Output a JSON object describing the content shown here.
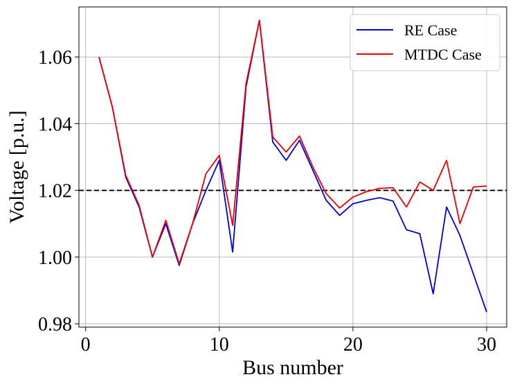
{
  "chart_data": {
    "type": "line",
    "title": "",
    "xlabel": "Bus number",
    "ylabel": "Voltage [p.u.]",
    "xlim": [
      -0.5,
      31.5
    ],
    "ylim": [
      0.979,
      1.075
    ],
    "xticks": [
      0,
      10,
      20,
      30
    ],
    "xtick_labels": [
      "0",
      "10",
      "20",
      "30"
    ],
    "yticks": [
      0.98,
      1.0,
      1.02,
      1.04,
      1.06
    ],
    "ytick_labels": [
      "0.98",
      "1.00",
      "1.02",
      "1.04",
      "1.06"
    ],
    "grid": true,
    "legend_position": "top-right",
    "reference_line": {
      "y": 1.02,
      "style": "dashed",
      "color": "#000000"
    },
    "x": [
      1,
      2,
      3,
      4,
      5,
      6,
      7,
      8,
      9,
      10,
      11,
      12,
      13,
      14,
      15,
      16,
      17,
      18,
      19,
      20,
      21,
      22,
      23,
      24,
      25,
      26,
      27,
      28,
      29,
      30
    ],
    "series": [
      {
        "name": "RE Case",
        "color": "#0000dd",
        "values": [
          1.06,
          1.045,
          1.024,
          1.015,
          1.0,
          1.01,
          0.9975,
          1.01,
          1.02,
          1.029,
          1.0015,
          1.051,
          1.071,
          1.0345,
          1.029,
          1.035,
          1.026,
          1.017,
          1.0125,
          1.016,
          1.017,
          1.0178,
          1.0168,
          1.0082,
          1.007,
          0.989,
          1.015,
          1.0065,
          0.995,
          0.9835
        ]
      },
      {
        "name": "MTDC Case",
        "color": "#ee0000",
        "values": [
          1.06,
          1.045,
          1.0245,
          1.0155,
          1.0,
          1.011,
          0.998,
          1.01,
          1.025,
          1.0305,
          1.0095,
          1.052,
          1.071,
          1.036,
          1.0315,
          1.0363,
          1.027,
          1.019,
          1.0147,
          1.018,
          1.0196,
          1.0206,
          1.0208,
          1.015,
          1.0225,
          1.02,
          1.029,
          1.01,
          1.021,
          1.0213
        ]
      }
    ]
  }
}
